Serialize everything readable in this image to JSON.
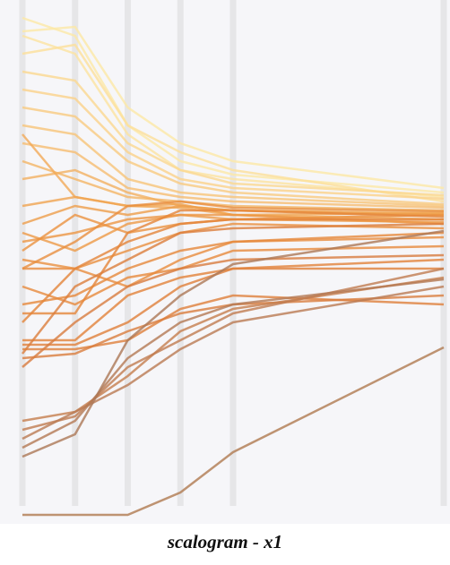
{
  "chart_data": {
    "type": "line",
    "title": "scalogram - x1",
    "x": [
      0,
      1,
      2,
      3,
      4,
      8
    ],
    "xlim": [
      0,
      8
    ],
    "xticks": [
      0,
      1,
      2,
      3,
      4,
      8
    ],
    "ylim": [
      580,
      0
    ],
    "series": [
      {
        "color": "#fde9a6",
        "values": [
          20,
          40,
          140,
          180,
          195,
          215
        ]
      },
      {
        "color": "#fde9a6",
        "values": [
          35,
          30,
          120,
          160,
          180,
          210
        ]
      },
      {
        "color": "#fce3a0",
        "values": [
          40,
          60,
          150,
          190,
          200,
          220
        ]
      },
      {
        "color": "#fce09a",
        "values": [
          60,
          50,
          140,
          170,
          190,
          225
        ]
      },
      {
        "color": "#fbd890",
        "values": [
          80,
          90,
          160,
          190,
          205,
          218
        ]
      },
      {
        "color": "#fbd28a",
        "values": [
          100,
          110,
          170,
          200,
          210,
          222
        ]
      },
      {
        "color": "#f9cb80",
        "values": [
          120,
          130,
          180,
          205,
          215,
          228
        ]
      },
      {
        "color": "#f8c478",
        "values": [
          140,
          150,
          200,
          215,
          220,
          230
        ]
      },
      {
        "color": "#f6bd70",
        "values": [
          160,
          170,
          210,
          220,
          225,
          232
        ]
      },
      {
        "color": "#f4b565",
        "values": [
          180,
          200,
          220,
          225,
          230,
          235
        ]
      },
      {
        "color": "#f3b060",
        "values": [
          200,
          190,
          215,
          230,
          235,
          238
        ]
      },
      {
        "color": "#f2aa58",
        "values": [
          150,
          220,
          230,
          232,
          240,
          245
        ]
      },
      {
        "color": "#f0a450",
        "values": [
          230,
          220,
          230,
          228,
          240,
          238
        ]
      },
      {
        "color": "#ee9e4a",
        "values": [
          250,
          230,
          240,
          230,
          235,
          240
        ]
      },
      {
        "color": "#ed9a46",
        "values": [
          260,
          280,
          250,
          240,
          245,
          248
        ]
      },
      {
        "color": "#ec9643",
        "values": [
          270,
          260,
          245,
          240,
          240,
          250
        ]
      },
      {
        "color": "#eb9240",
        "values": [
          280,
          240,
          260,
          250,
          245,
          240
        ]
      },
      {
        "color": "#ea9040",
        "values": [
          290,
          300,
          280,
          260,
          250,
          255
        ]
      },
      {
        "color": "#e98e3e",
        "values": [
          300,
          270,
          230,
          225,
          232,
          236
        ]
      },
      {
        "color": "#e88c3d",
        "values": [
          300,
          300,
          320,
          290,
          270,
          265
        ]
      },
      {
        "color": "#e78a3c",
        "values": [
          320,
          340,
          310,
          300,
          280,
          275
        ]
      },
      {
        "color": "#e6883b",
        "values": [
          340,
          330,
          300,
          280,
          270,
          260
        ]
      },
      {
        "color": "#e5863a",
        "values": [
          350,
          350,
          260,
          235,
          235,
          242
        ]
      },
      {
        "color": "#e4843a",
        "values": [
          360,
          300,
          270,
          250,
          245,
          245
        ]
      },
      {
        "color": "#e2823a",
        "values": [
          380,
          380,
          330,
          310,
          300,
          290
        ]
      },
      {
        "color": "#e0803a",
        "values": [
          385,
          385,
          360,
          320,
          300,
          300
        ]
      },
      {
        "color": "#de7f3b",
        "values": [
          390,
          390,
          380,
          345,
          330,
          340
        ]
      },
      {
        "color": "#dc7e3c",
        "values": [
          395,
          320,
          290,
          260,
          255,
          250
        ]
      },
      {
        "color": "#da7d3d",
        "values": [
          400,
          395,
          370,
          350,
          340,
          330
        ]
      },
      {
        "color": "#d87c3e",
        "values": [
          410,
          360,
          320,
          300,
          290,
          285
        ]
      },
      {
        "color": "#c67e4e",
        "values": [
          470,
          460,
          420,
          370,
          345,
          310
        ]
      },
      {
        "color": "#c07c50",
        "values": [
          480,
          465,
          410,
          380,
          350,
          300
        ]
      },
      {
        "color": "#ba7a52",
        "values": [
          490,
          460,
          430,
          390,
          360,
          320
        ]
      },
      {
        "color": "#b47954",
        "values": [
          500,
          470,
          400,
          360,
          340,
          312
        ]
      },
      {
        "color": "#ad7856",
        "values": [
          510,
          485,
          380,
          330,
          295,
          258
        ]
      },
      {
        "color": "#b07a50",
        "values": [
          575,
          575,
          575,
          550,
          505,
          388
        ]
      }
    ]
  }
}
